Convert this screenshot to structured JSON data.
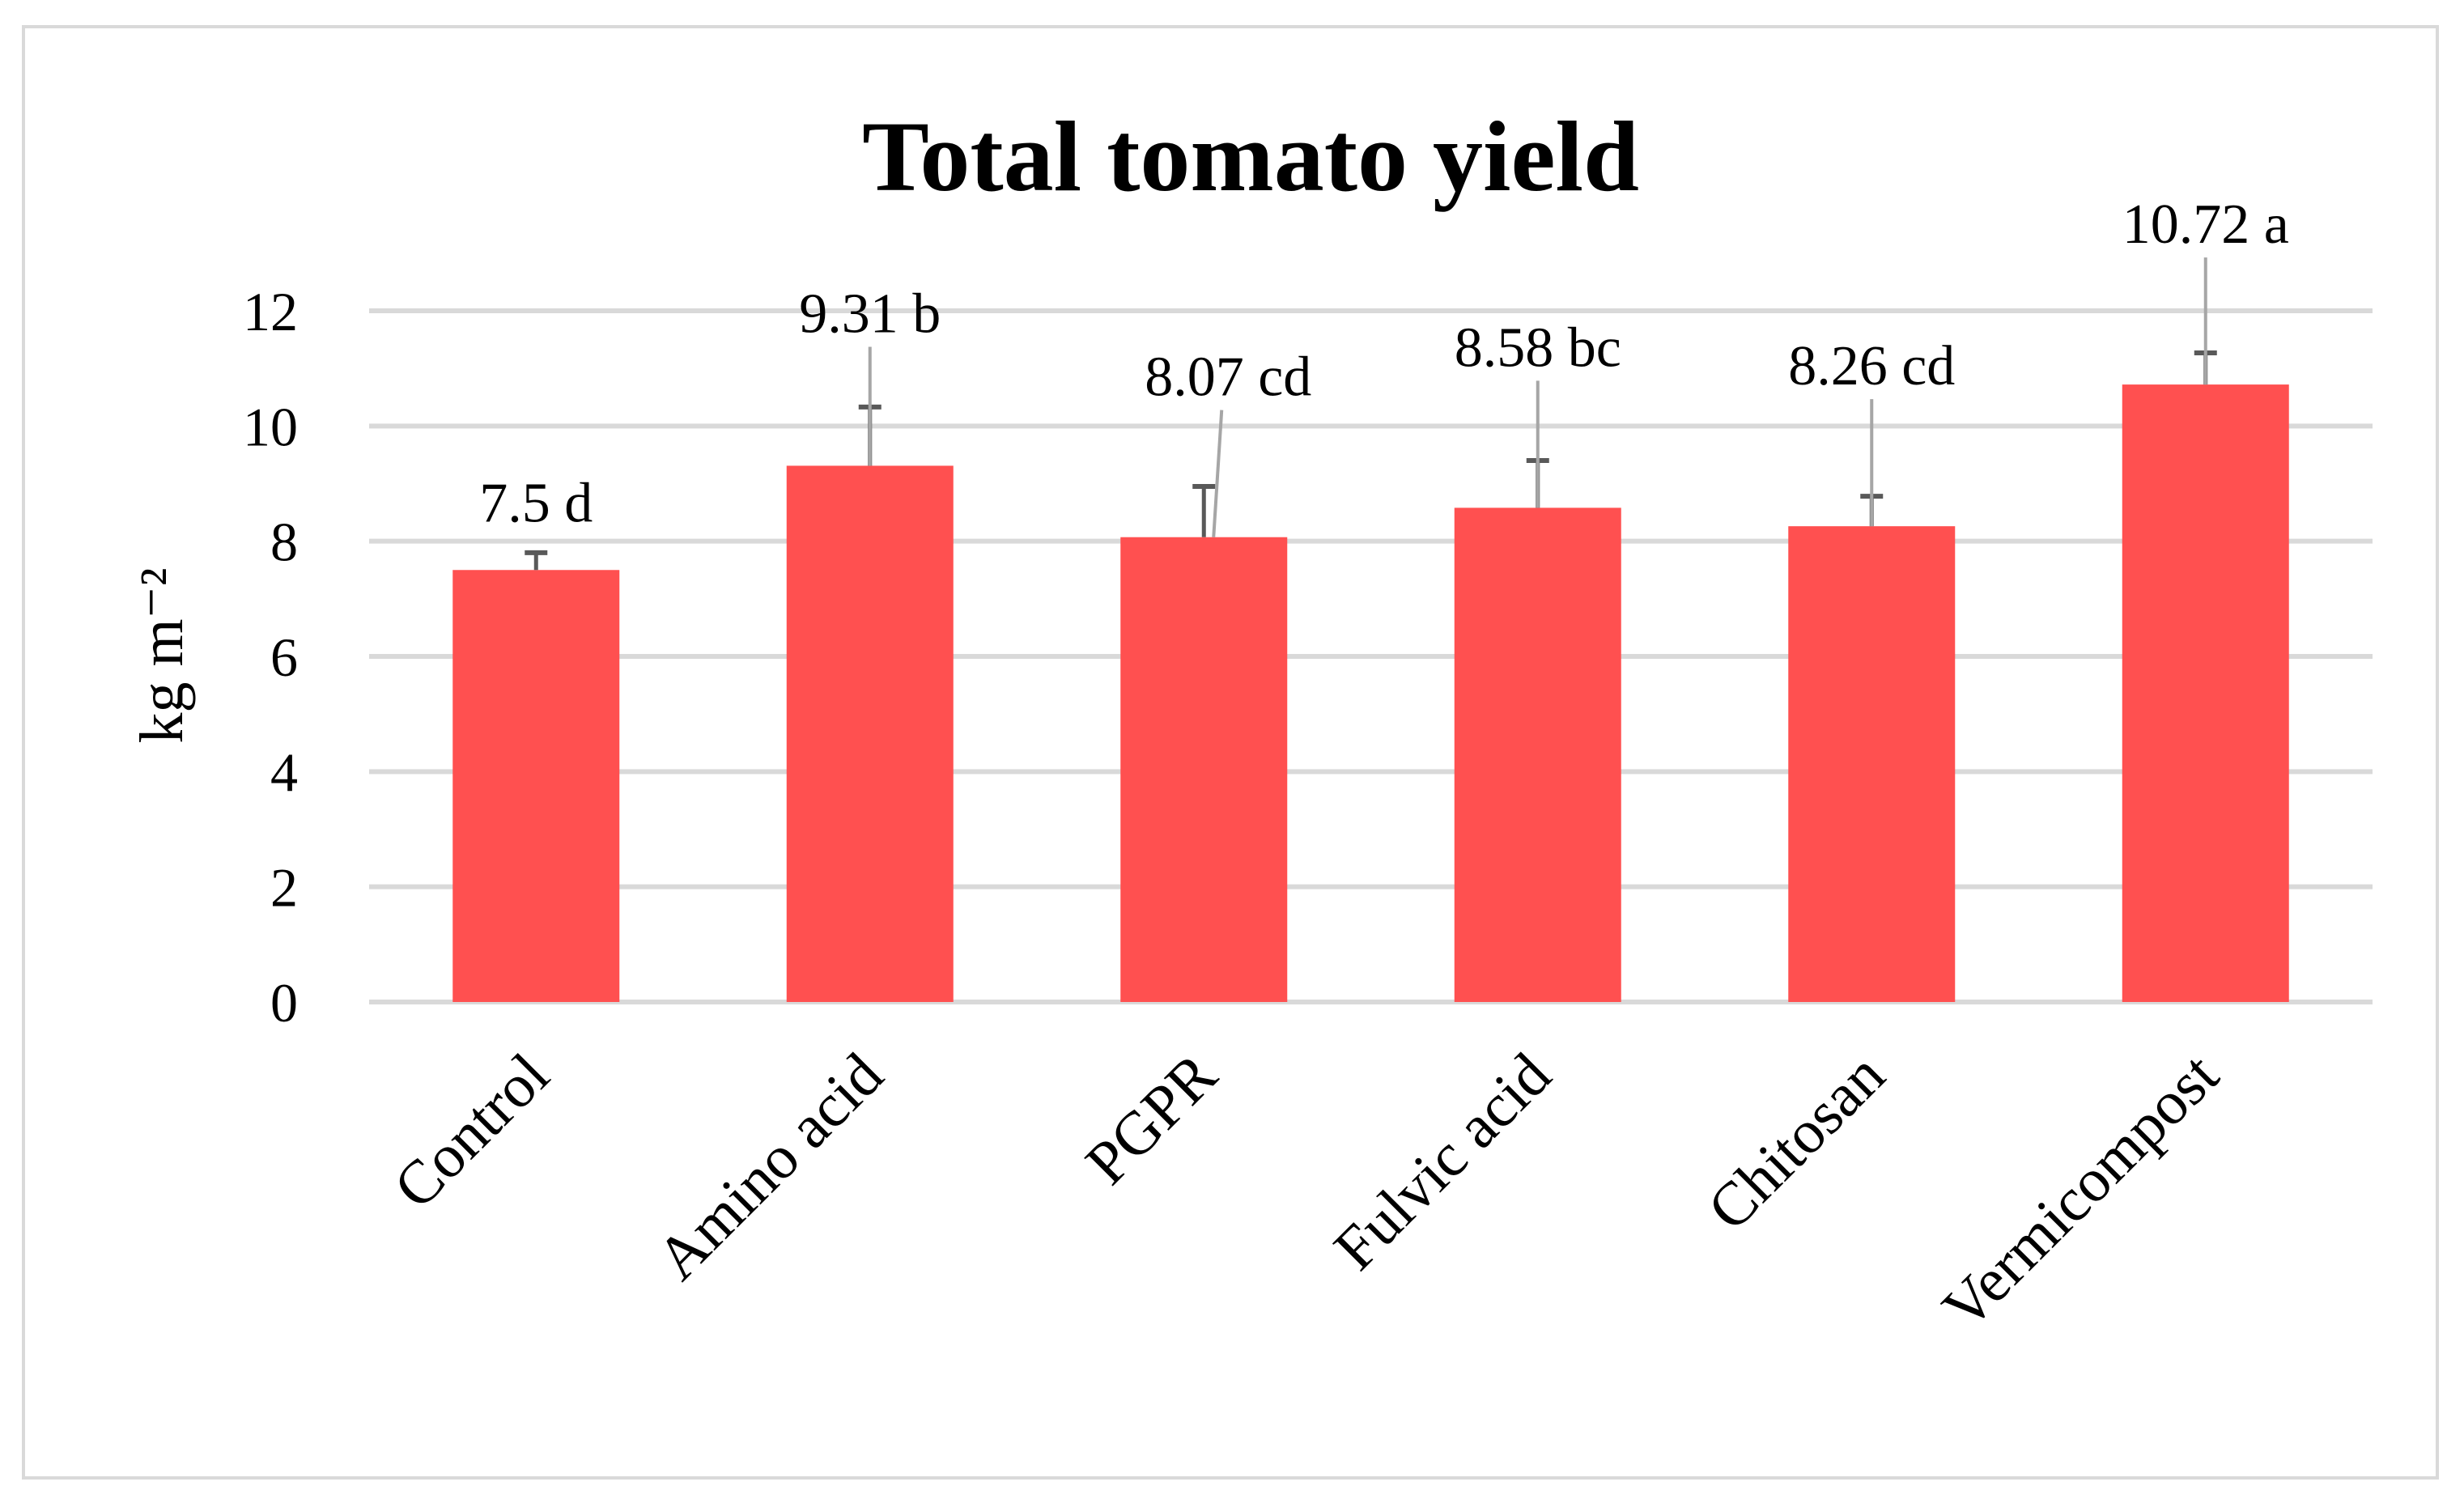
{
  "chart_data": {
    "type": "bar",
    "title": "Total tomato yield",
    "xlabel": "",
    "ylabel": "kg m⁻²",
    "ylim": [
      0,
      12
    ],
    "yticks": [
      0,
      2,
      4,
      6,
      8,
      10,
      12
    ],
    "grid": true,
    "legend": "none",
    "categories": [
      "Control",
      "Amino acid",
      "PGPR",
      "Fulvic acid",
      "Chitosan",
      "Vermicompost"
    ],
    "values": [
      7.5,
      9.31,
      8.07,
      8.58,
      8.26,
      10.72
    ],
    "errors": [
      0.3,
      1.02,
      0.88,
      0.82,
      0.52,
      0.55
    ],
    "data_labels": [
      "7.5 d",
      "9.31 b",
      "8.07 cd",
      "8.58 bc",
      "8.26 cd",
      "10.72 a"
    ],
    "colors": {
      "bar": "#ff5050",
      "grid": "#d9d9d9",
      "error_bar": "#595959",
      "leader": "#a6a6a6"
    }
  }
}
